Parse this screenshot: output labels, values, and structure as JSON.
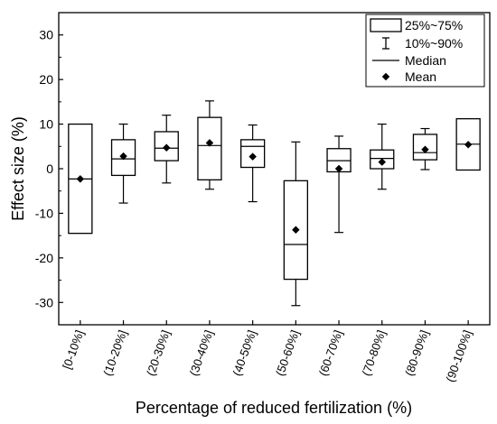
{
  "chart_data": {
    "type": "box",
    "xlabel": "Percentage of reduced fertilization (%)",
    "ylabel": "Effect size (%)",
    "ylim": [
      -35,
      35
    ],
    "yticks": [
      -30,
      -20,
      -10,
      0,
      10,
      20,
      30
    ],
    "grid": false,
    "legend_position": "top-right",
    "legend": {
      "box": "25%~75%",
      "whisker": "10%~90%",
      "median": "Median",
      "mean": "Mean"
    },
    "categories": [
      "[0-10%]",
      "(10-20%]",
      "(20-30%]",
      "(30-40%]",
      "(40-50%]",
      "(50-60%]",
      "(60-70%]",
      "(70-80%]",
      "(80-90%]",
      "(90-100%]"
    ],
    "boxes": [
      {
        "p10": null,
        "q1": -14.5,
        "median": -2.3,
        "q3": 10.0,
        "p90": null,
        "mean": -2.3
      },
      {
        "p10": -7.7,
        "q1": -1.5,
        "median": 2.2,
        "q3": 6.5,
        "p90": 10.0,
        "mean": 2.8
      },
      {
        "p10": -3.2,
        "q1": 1.8,
        "median": 4.6,
        "q3": 8.3,
        "p90": 12.0,
        "mean": 4.7
      },
      {
        "p10": -4.6,
        "q1": -2.5,
        "median": 5.2,
        "q3": 11.5,
        "p90": 15.2,
        "mean": 5.8
      },
      {
        "p10": -7.4,
        "q1": 0.3,
        "median": 5.0,
        "q3": 6.5,
        "p90": 9.8,
        "mean": 2.7
      },
      {
        "p10": -30.7,
        "q1": -24.8,
        "median": -17.0,
        "q3": -2.7,
        "p90": 6.0,
        "mean": -13.7
      },
      {
        "p10": -14.3,
        "q1": -0.7,
        "median": 1.8,
        "q3": 4.5,
        "p90": 7.3,
        "mean": 0.0
      },
      {
        "p10": -4.6,
        "q1": 0.0,
        "median": 2.3,
        "q3": 4.2,
        "p90": 10.0,
        "mean": 1.5
      },
      {
        "p10": -0.2,
        "q1": 2.0,
        "median": 3.6,
        "q3": 7.7,
        "p90": 9.0,
        "mean": 4.3
      },
      {
        "p10": null,
        "q1": -0.3,
        "median": 5.5,
        "q3": 11.2,
        "p90": null,
        "mean": 5.4
      }
    ]
  }
}
